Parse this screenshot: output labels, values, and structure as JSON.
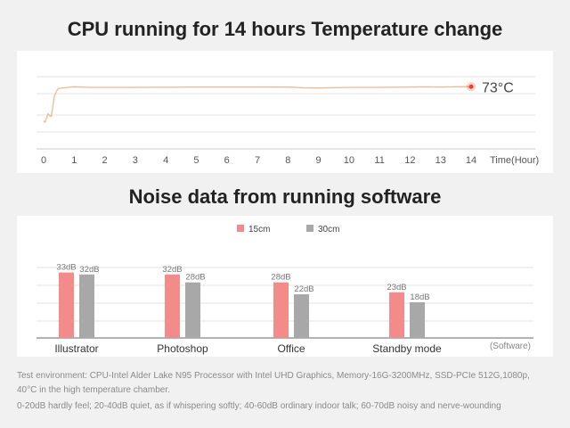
{
  "titles": {
    "temperature": "CPU running for 14 hours Temperature change",
    "noise": "Noise data from running software"
  },
  "colors": {
    "line": "#f0b88e",
    "marker": "#e8432c",
    "bar_15cm": "#f48b8b",
    "bar_30cm": "#a8a8a8",
    "grid": "#e3e3e3",
    "axis": "#9a9a9a"
  },
  "chart_data": [
    {
      "type": "line",
      "title": "CPU running for 14 hours Temperature change",
      "xlabel": "Time(Hour)",
      "ylabel": "",
      "xlim": [
        0,
        14
      ],
      "ylim": [
        0,
        90
      ],
      "x_ticks": [
        "0",
        "1",
        "2",
        "3",
        "4",
        "5",
        "6",
        "7",
        "8",
        "9",
        "10",
        "11",
        "12",
        "13",
        "14"
      ],
      "grid": true,
      "end_label": "73°C",
      "series": [
        {
          "x": [
            0,
            0.05,
            0.1,
            0.15,
            0.2,
            0.25,
            0.3,
            0.35,
            0.4,
            0.45,
            0.5,
            0.6,
            0.7,
            0.8,
            0.9,
            1,
            1.2,
            1.5,
            2,
            3,
            4,
            5,
            6,
            7,
            8,
            8.5,
            9,
            9.5,
            10,
            11,
            12,
            12.5,
            13,
            13.5,
            14
          ],
          "y": [
            20,
            18,
            25,
            31,
            28,
            27,
            42,
            58,
            64,
            68,
            70,
            71,
            71.5,
            72,
            72.5,
            73,
            72.5,
            72,
            72,
            72,
            72.2,
            72.5,
            72.5,
            72.6,
            72.4,
            71.5,
            71,
            71.5,
            72,
            72,
            72.5,
            72.8,
            72.5,
            73,
            73
          ]
        }
      ]
    },
    {
      "type": "bar",
      "title": "Noise data from running software",
      "xlabel": "(Software)",
      "ylabel": "",
      "ylim": [
        0,
        40
      ],
      "legend": "top-center",
      "grid": true,
      "categories": [
        "Illustrator",
        "Photoshop",
        "Office",
        "Standby mode"
      ],
      "series": [
        {
          "name": "15cm",
          "values": [
            33,
            32,
            28,
            23
          ],
          "labels": [
            "33dB",
            "32dB",
            "28dB",
            "23dB"
          ]
        },
        {
          "name": "30cm",
          "values": [
            32,
            28,
            22,
            18
          ],
          "labels": [
            "32dB",
            "28dB",
            "22dB",
            "18dB"
          ]
        }
      ]
    }
  ],
  "notes": {
    "line1": "Test environment: CPU-Intel Alder Lake N95 Processor with Intel UHD Graphics,  Memory-16G-3200MHz, SSD-PCIe 512G,1080p,",
    "line2": "40°C in the high temperature chamber.",
    "line3": "0-20dB hardly feel; 20-40dB quiet, as if whispering softly; 40-60dB ordinary indoor talk; 60-70dB noisy and nerve-wounding"
  }
}
